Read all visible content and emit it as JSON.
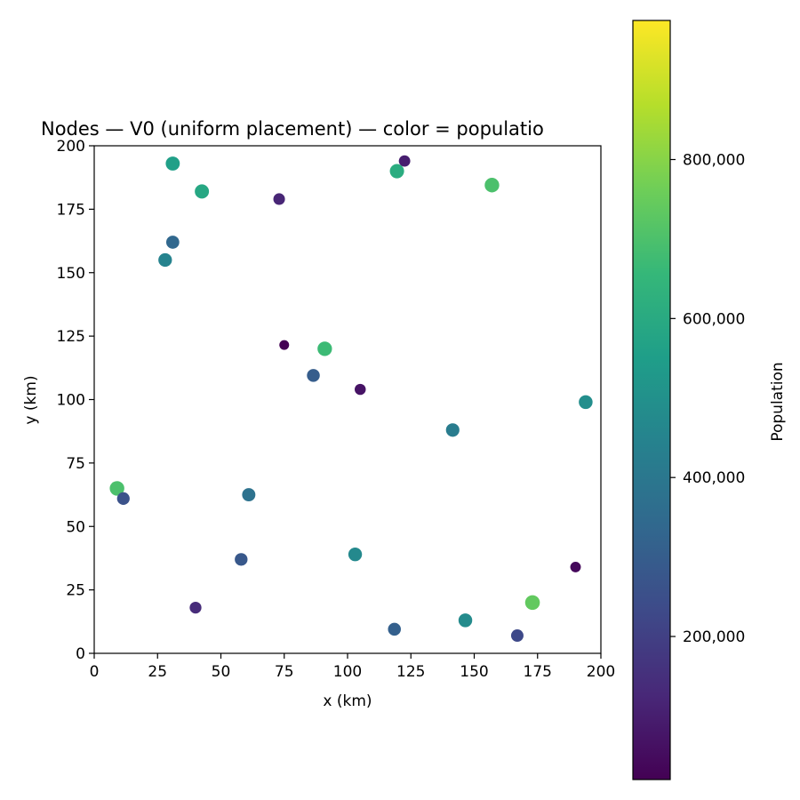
{
  "chart_data": {
    "type": "scatter",
    "title": "Nodes — V0 (uniform placement) — color = populatio",
    "xlabel": "x (km)",
    "ylabel": "y (km)",
    "xlim": [
      0,
      200
    ],
    "ylim": [
      0,
      200
    ],
    "xticks": [
      0,
      25,
      50,
      75,
      100,
      125,
      150,
      175,
      200
    ],
    "yticks": [
      0,
      25,
      50,
      75,
      100,
      125,
      150,
      175,
      200
    ],
    "xtick_labels": [
      "0",
      "25",
      "50",
      "75",
      "100",
      "125",
      "150",
      "175",
      "200"
    ],
    "ytick_labels": [
      "0",
      "25",
      "50",
      "75",
      "100",
      "125",
      "150",
      "175",
      "200"
    ],
    "grid": false,
    "colormap": "viridis",
    "colorbar": {
      "label": "Population",
      "range": [
        20000,
        975000
      ],
      "ticks": [
        200000,
        400000,
        600000,
        800000
      ],
      "tick_labels": [
        "200,000",
        "400,000",
        "600,000",
        "800,000"
      ],
      "colors": [
        "#440154",
        "#482878",
        "#3e4a89",
        "#31688e",
        "#26828e",
        "#1f9e89",
        "#35b779",
        "#6ece58",
        "#b5de2b",
        "#fde725"
      ]
    },
    "points": [
      {
        "x": 31,
        "y": 193,
        "population": 560000
      },
      {
        "x": 42.5,
        "y": 182,
        "population": 590000
      },
      {
        "x": 31,
        "y": 162,
        "population": 340000
      },
      {
        "x": 28,
        "y": 155,
        "population": 450000
      },
      {
        "x": 73,
        "y": 179,
        "population": 120000
      },
      {
        "x": 122.5,
        "y": 194,
        "population": 100000
      },
      {
        "x": 119.5,
        "y": 190,
        "population": 610000
      },
      {
        "x": 157,
        "y": 184.5,
        "population": 700000
      },
      {
        "x": 75,
        "y": 121.5,
        "population": 20000
      },
      {
        "x": 91,
        "y": 120,
        "population": 670000
      },
      {
        "x": 86.5,
        "y": 109.5,
        "population": 300000
      },
      {
        "x": 105,
        "y": 104,
        "population": 70000
      },
      {
        "x": 194,
        "y": 99,
        "population": 490000
      },
      {
        "x": 141.5,
        "y": 88,
        "population": 420000
      },
      {
        "x": 9,
        "y": 65,
        "population": 700000
      },
      {
        "x": 11.5,
        "y": 61,
        "population": 260000
      },
      {
        "x": 61,
        "y": 62.5,
        "population": 380000
      },
      {
        "x": 58,
        "y": 37,
        "population": 280000
      },
      {
        "x": 103,
        "y": 39,
        "population": 470000
      },
      {
        "x": 190,
        "y": 34,
        "population": 40000
      },
      {
        "x": 40,
        "y": 18,
        "population": 140000
      },
      {
        "x": 173,
        "y": 20,
        "population": 740000
      },
      {
        "x": 146.5,
        "y": 13,
        "population": 480000
      },
      {
        "x": 118.5,
        "y": 9.5,
        "population": 310000
      },
      {
        "x": 167,
        "y": 7,
        "population": 230000
      }
    ]
  }
}
